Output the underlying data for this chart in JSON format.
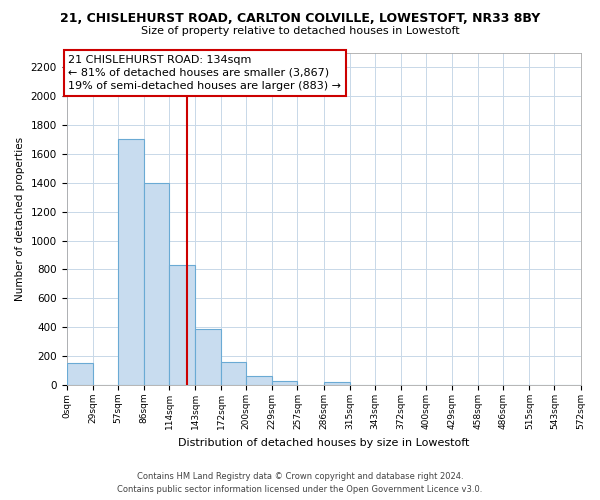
{
  "title": "21, CHISLEHURST ROAD, CARLTON COLVILLE, LOWESTOFT, NR33 8BY",
  "subtitle": "Size of property relative to detached houses in Lowestoft",
  "xlabel": "Distribution of detached houses by size in Lowestoft",
  "ylabel": "Number of detached properties",
  "bar_color": "#c8dcef",
  "bar_edge_color": "#6aaad4",
  "bins": [
    0,
    29,
    57,
    86,
    114,
    143,
    172,
    200,
    229,
    257,
    286,
    315,
    343,
    372,
    400,
    429,
    458,
    486,
    515,
    543,
    572
  ],
  "bar_heights": [
    150,
    0,
    1700,
    1400,
    830,
    390,
    160,
    65,
    30,
    0,
    25,
    0,
    0,
    0,
    0,
    0,
    0,
    0,
    0,
    0
  ],
  "tick_labels": [
    "0sqm",
    "29sqm",
    "57sqm",
    "86sqm",
    "114sqm",
    "143sqm",
    "172sqm",
    "200sqm",
    "229sqm",
    "257sqm",
    "286sqm",
    "315sqm",
    "343sqm",
    "372sqm",
    "400sqm",
    "429sqm",
    "458sqm",
    "486sqm",
    "515sqm",
    "543sqm",
    "572sqm"
  ],
  "ylim": [
    0,
    2300
  ],
  "yticks": [
    0,
    200,
    400,
    600,
    800,
    1000,
    1200,
    1400,
    1600,
    1800,
    2000,
    2200
  ],
  "vline_x": 134,
  "vline_color": "#cc0000",
  "annotation_title": "21 CHISLEHURST ROAD: 134sqm",
  "annotation_line1": "← 81% of detached houses are smaller (3,867)",
  "annotation_line2": "19% of semi-detached houses are larger (883) →",
  "annotation_box_color": "#ffffff",
  "annotation_box_edge": "#cc0000",
  "footer_line1": "Contains HM Land Registry data © Crown copyright and database right 2024.",
  "footer_line2": "Contains public sector information licensed under the Open Government Licence v3.0.",
  "background_color": "#ffffff",
  "grid_color": "#c8d8e8"
}
